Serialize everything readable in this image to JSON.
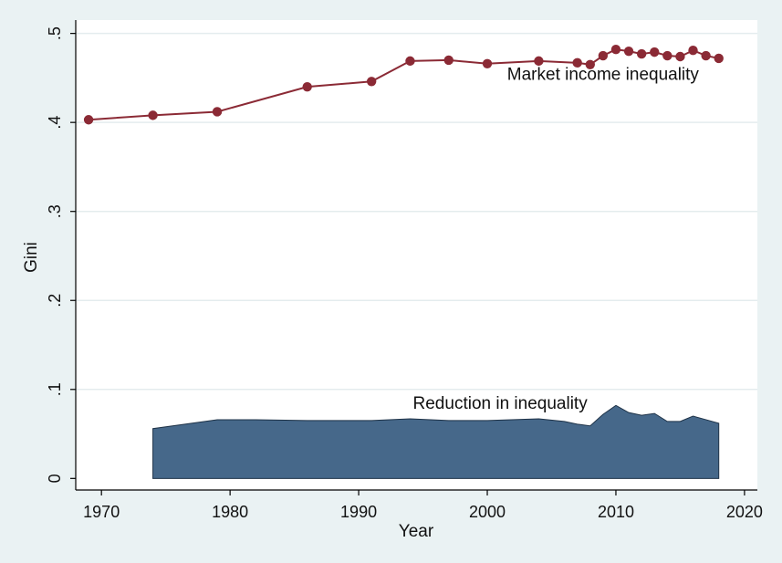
{
  "chart_data": {
    "type": "line",
    "xlabel": "Year",
    "ylabel": "Gini",
    "xlim": [
      1968,
      2021
    ],
    "ylim": [
      -0.013,
      0.515
    ],
    "x_ticks": [
      1970,
      1980,
      1990,
      2000,
      2010,
      2020
    ],
    "y_ticks": [
      0,
      0.1,
      0.2,
      0.3,
      0.4,
      0.5
    ],
    "y_tick_labels": [
      "0",
      ".1",
      ".2",
      ".3",
      ".4",
      ".5"
    ],
    "grid": "horizontal",
    "legend": "none",
    "colors": {
      "plot_background": "#ffffff",
      "outer_background": "#eaf2f3",
      "grid": "#e4ecee",
      "market_line": "#8b2a35",
      "reduction_fill": "#46688a"
    },
    "annotations": [
      {
        "text": "Market income inequality",
        "x": 2009,
        "y": 0.448
      },
      {
        "text": "Reduction in inequality",
        "x": 2001,
        "y": 0.078
      }
    ],
    "series": [
      {
        "kind": "line-markers",
        "x": [
          1969,
          1974,
          1979,
          1986,
          1991,
          1994,
          1997,
          2000,
          2004,
          2007,
          2008,
          2009,
          2010,
          2011,
          2012,
          2013,
          2014,
          2015,
          2016,
          2017,
          2018
        ],
        "values": [
          0.403,
          0.408,
          0.412,
          0.44,
          0.446,
          0.469,
          0.47,
          0.466,
          0.469,
          0.467,
          0.465,
          0.475,
          0.482,
          0.48,
          0.477,
          0.479,
          0.475,
          0.474,
          0.481,
          0.475,
          0.472
        ]
      },
      {
        "kind": "area",
        "x": [
          1974,
          1979,
          1982,
          1986,
          1991,
          1994,
          1997,
          2000,
          2004,
          2006,
          2007,
          2008,
          2009,
          2010,
          2011,
          2012,
          2013,
          2014,
          2015,
          2016,
          2017,
          2018
        ],
        "values": [
          0.056,
          0.066,
          0.066,
          0.065,
          0.065,
          0.067,
          0.065,
          0.065,
          0.067,
          0.064,
          0.061,
          0.059,
          0.072,
          0.082,
          0.074,
          0.071,
          0.073,
          0.064,
          0.064,
          0.07,
          0.066,
          0.062
        ]
      }
    ]
  }
}
